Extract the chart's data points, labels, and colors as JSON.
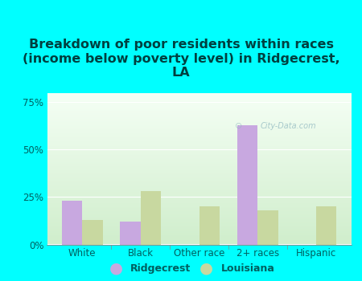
{
  "title": "Breakdown of poor residents within races\n(income below poverty level) in Ridgecrest,\nLA",
  "categories": [
    "White",
    "Black",
    "Other race",
    "2+ races",
    "Hispanic"
  ],
  "ridgecrest": [
    23,
    12,
    0,
    63,
    0
  ],
  "louisiana": [
    13,
    28,
    20,
    18,
    20
  ],
  "ridgecrest_color": "#c8a8e0",
  "louisiana_color": "#c8d8a0",
  "background_outer": "#00ffff",
  "ylim": [
    0,
    80
  ],
  "yticks": [
    0,
    25,
    50,
    75
  ],
  "ytick_labels": [
    "0%",
    "25%",
    "50%",
    "75%"
  ],
  "bar_width": 0.35,
  "title_fontsize": 11.5,
  "title_color": "#004040",
  "tick_label_color": "#006060",
  "watermark": "City-Data.com",
  "legend_labels": [
    "Ridgecrest",
    "Louisiana"
  ],
  "grid_color": "#ffffff",
  "plot_bg_top": "#f5fff5",
  "plot_bg_bottom": "#d0eecc"
}
